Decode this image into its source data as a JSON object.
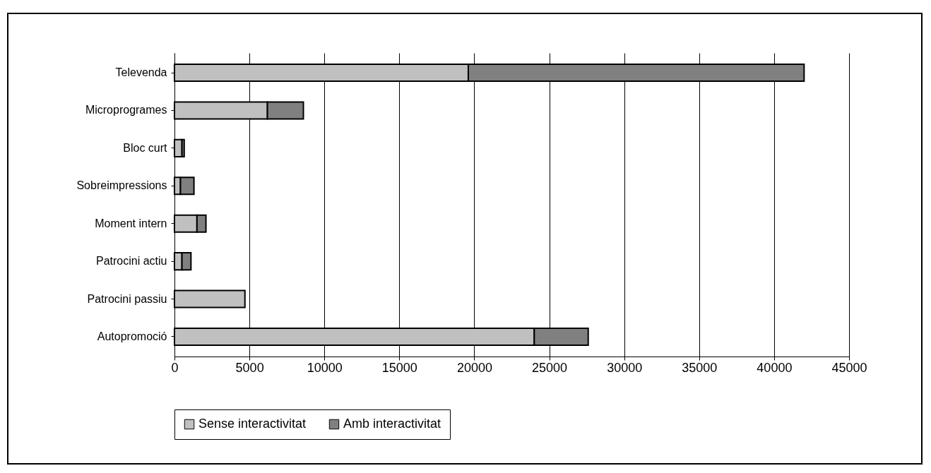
{
  "chart_data": {
    "type": "bar",
    "orientation": "horizontal",
    "stacked": true,
    "categories": [
      "Televenda",
      "Microprogrames",
      "Bloc curt",
      "Sobreimpressions",
      "Moment intern",
      "Patrocini actiu",
      "Patrocini passiu",
      "Autopromoció"
    ],
    "series": [
      {
        "name": "Sense interactivitat",
        "color": "#c0c0c0",
        "values": [
          19600,
          6200,
          500,
          400,
          1500,
          500,
          4700,
          24000
        ]
      },
      {
        "name": "Amb interactivitat",
        "color": "#808080",
        "values": [
          22400,
          2400,
          150,
          900,
          600,
          600,
          null,
          3600
        ]
      }
    ],
    "xlim": [
      0,
      45000
    ],
    "xticks": [
      0,
      5000,
      10000,
      15000,
      20000,
      25000,
      30000,
      35000,
      40000,
      45000
    ],
    "grid": "x",
    "legend": "bottom"
  }
}
